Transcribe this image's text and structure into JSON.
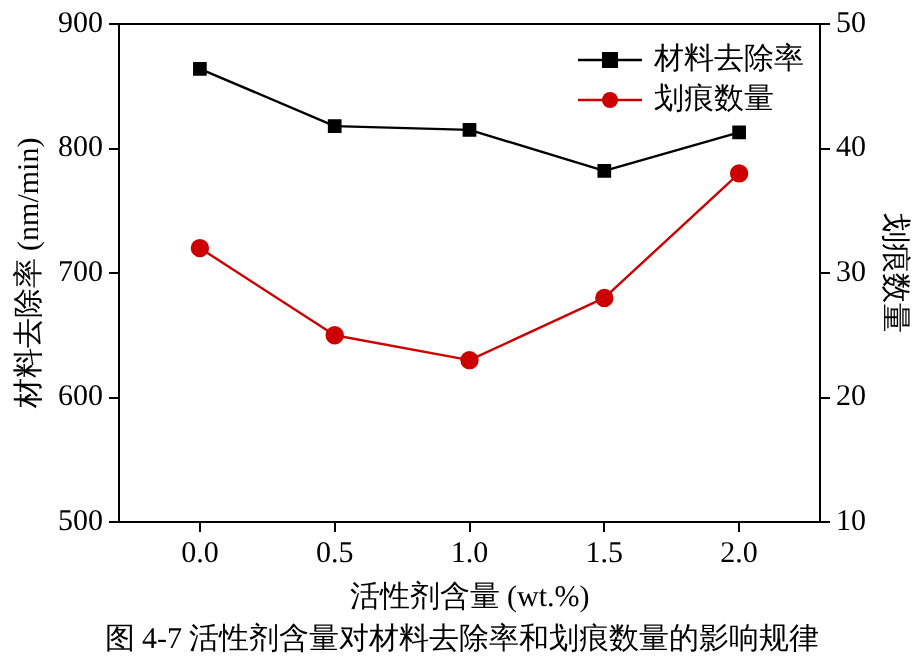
{
  "chart_data": {
    "type": "line",
    "xlabel": "活性剂含量 (wt.%)",
    "ylabel": "材料去除率 (nm/min)",
    "y2label": "划痕数量",
    "x": [
      0,
      0.5,
      1.0,
      1.5,
      2.0
    ],
    "xlim": [
      -0.3,
      2.3
    ],
    "xticks": [
      {
        "value": 0,
        "label": "0.0"
      },
      {
        "value": 0.5,
        "label": "0.5"
      },
      {
        "value": 1,
        "label": "1.0"
      },
      {
        "value": 1.5,
        "label": "1.5"
      },
      {
        "value": 2,
        "label": "2.0"
      }
    ],
    "ylim": [
      500,
      900
    ],
    "yticks": [
      500,
      600,
      700,
      800,
      900
    ],
    "y2lim": [
      10,
      50
    ],
    "y2ticks": [
      10,
      20,
      30,
      40,
      50
    ],
    "series": [
      {
        "name": "材料去除率",
        "color": "#000000",
        "marker": "square",
        "values": [
          864,
          818,
          815,
          782,
          813
        ]
      },
      {
        "name": "划痕数量",
        "color": "#cc0000",
        "marker": "circle",
        "axis": "y2",
        "values": [
          32,
          25,
          23,
          28,
          38
        ]
      }
    ],
    "legend": "top right",
    "grid": false,
    "annotations": [
      "图 4-7  活性剂含量对材料去除率和划痕数量的影响规律"
    ]
  }
}
